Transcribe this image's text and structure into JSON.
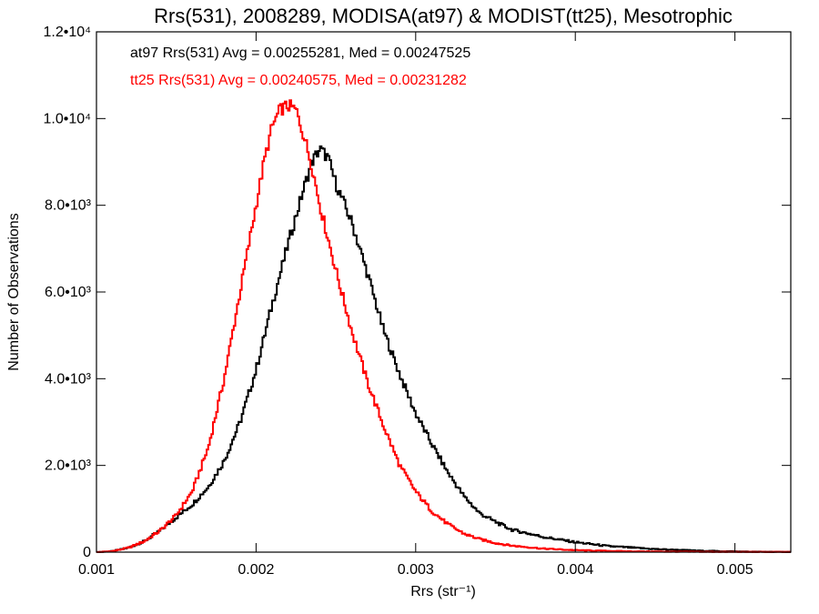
{
  "chart_data": {
    "type": "line",
    "style": "histogram-step",
    "title": "Rrs(531), 2008289, MODISA(at97) & MODIST(tt25), Mesotrophic",
    "xlabel": "Rrs (str⁻¹)",
    "ylabel": "Number of Observations",
    "xlim": [
      0.001,
      0.00535
    ],
    "ylim": [
      0,
      12000
    ],
    "x_ticks": [
      {
        "value": 0.001,
        "label": "0.001"
      },
      {
        "value": 0.002,
        "label": "0.002"
      },
      {
        "value": 0.003,
        "label": "0.003"
      },
      {
        "value": 0.004,
        "label": "0.004"
      },
      {
        "value": 0.005,
        "label": "0.005"
      }
    ],
    "y_ticks": [
      {
        "value": 0,
        "label": "0"
      },
      {
        "value": 2000,
        "label": "2.0•10³"
      },
      {
        "value": 4000,
        "label": "4.0•10³"
      },
      {
        "value": 6000,
        "label": "6.0•10³"
      },
      {
        "value": 8000,
        "label": "8.0•10³"
      },
      {
        "value": 10000,
        "label": "1.0•10⁴"
      },
      {
        "value": 12000,
        "label": "1.2•10⁴"
      }
    ],
    "grid": false,
    "legend_position": "top-left",
    "annotations": [
      {
        "text": "at97 Rrs(531) Avg = 0.00255281, Med = 0.00247525",
        "color": "#000000"
      },
      {
        "text": "tt25 Rrs(531) Avg = 0.00240575, Med = 0.00231282",
        "color": "#ff0000"
      }
    ],
    "series": [
      {
        "color": "#000000",
        "x": [
          0.001,
          0.0011,
          0.0012,
          0.0013,
          0.0014,
          0.0015,
          0.0016,
          0.0017,
          0.0018,
          0.0019,
          0.002,
          0.0021,
          0.0022,
          0.0023,
          0.00235,
          0.0024,
          0.00245,
          0.0025,
          0.0026,
          0.0027,
          0.0028,
          0.0029,
          0.003,
          0.0031,
          0.0032,
          0.0033,
          0.0034,
          0.0035,
          0.0036,
          0.0038,
          0.004,
          0.0042,
          0.0045,
          0.0048,
          0.0051,
          0.00535
        ],
        "y": [
          0,
          20,
          100,
          250,
          500,
          800,
          1100,
          1500,
          2100,
          3000,
          4200,
          5700,
          7100,
          8400,
          9000,
          9300,
          9100,
          8500,
          7600,
          6400,
          5100,
          4100,
          3200,
          2500,
          1850,
          1300,
          900,
          700,
          520,
          350,
          230,
          140,
          70,
          30,
          10,
          5
        ]
      },
      {
        "color": "#ff0000",
        "x": [
          0.001,
          0.0011,
          0.0012,
          0.0013,
          0.0014,
          0.0015,
          0.0016,
          0.0017,
          0.0018,
          0.0019,
          0.002,
          0.00205,
          0.0021,
          0.00215,
          0.0022,
          0.00225,
          0.0023,
          0.00235,
          0.0024,
          0.0025,
          0.0026,
          0.0027,
          0.0028,
          0.0029,
          0.003,
          0.0031,
          0.0032,
          0.0033,
          0.0034,
          0.0035,
          0.0036,
          0.0038,
          0.004,
          0.0043,
          0.0046,
          0.005,
          0.00535
        ],
        "y": [
          0,
          20,
          100,
          250,
          500,
          850,
          1400,
          2400,
          4000,
          6000,
          8000,
          9000,
          9800,
          10200,
          10300,
          10200,
          9600,
          8900,
          8000,
          6500,
          5100,
          3900,
          2900,
          2000,
          1400,
          950,
          650,
          430,
          300,
          210,
          150,
          80,
          45,
          20,
          10,
          5,
          5
        ]
      }
    ]
  }
}
